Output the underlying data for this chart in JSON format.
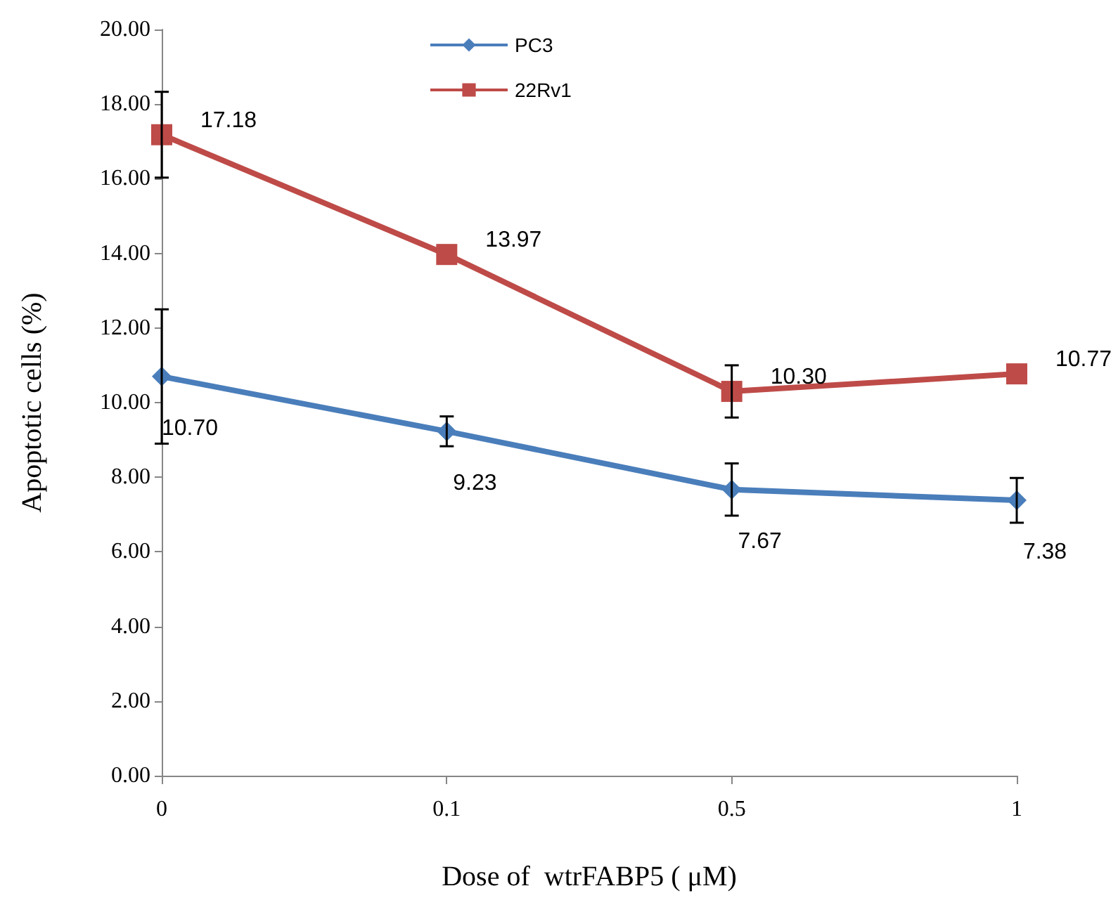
{
  "chart_data": {
    "type": "line",
    "xlabel": "Dose of  wtrFABP5 ( μM)",
    "ylabel": "Apoptotic cells (%)",
    "categories": [
      "0",
      "0.1",
      "0.5",
      "1"
    ],
    "ylim": [
      0,
      20
    ],
    "yticks": [
      {
        "value": 0,
        "label": "0.00"
      },
      {
        "value": 2,
        "label": "2.00"
      },
      {
        "value": 4,
        "label": "4.00"
      },
      {
        "value": 6,
        "label": "6.00"
      },
      {
        "value": 8,
        "label": "8.00"
      },
      {
        "value": 10,
        "label": "10.00"
      },
      {
        "value": 12,
        "label": "12.00"
      },
      {
        "value": 14,
        "label": "14.00"
      },
      {
        "value": 16,
        "label": "16.00"
      },
      {
        "value": 18,
        "label": "18.00"
      },
      {
        "value": 20,
        "label": "20.00"
      }
    ],
    "legend": "top",
    "series": [
      {
        "name": "PC3",
        "color": "#4a7ebb",
        "marker": "diamond",
        "values": [
          10.7,
          9.23,
          7.67,
          7.38
        ],
        "value_labels": [
          "10.70",
          "9.23",
          "7.67",
          "7.38"
        ],
        "errors": [
          1.8,
          0.4,
          0.7,
          0.6
        ]
      },
      {
        "name": "22Rv1",
        "color": "#be4b48",
        "marker": "square",
        "values": [
          17.18,
          13.97,
          10.3,
          10.77
        ],
        "value_labels": [
          "17.18",
          "13.97",
          "10.30",
          "10.77"
        ],
        "errors": [
          1.15,
          null,
          0.7,
          null
        ]
      }
    ]
  }
}
